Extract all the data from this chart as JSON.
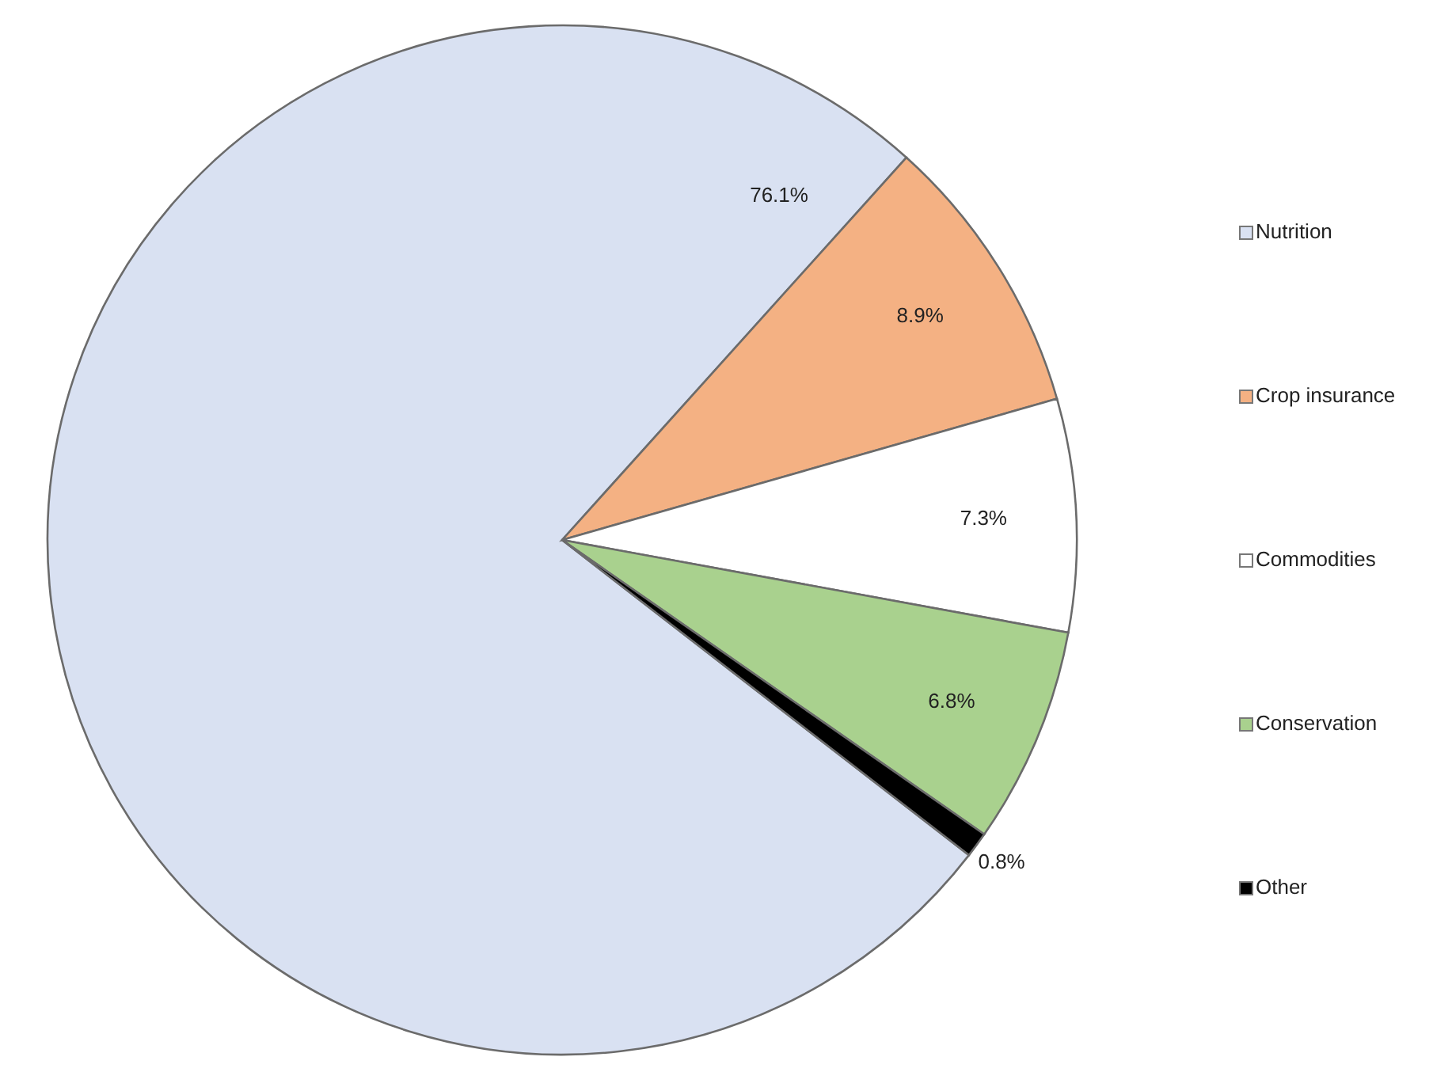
{
  "chart_data": {
    "type": "pie",
    "categories": [
      "Nutrition",
      "Crop insurance",
      "Commodities",
      "Conservation",
      "Other"
    ],
    "values": [
      76.1,
      8.9,
      7.3,
      6.8,
      0.8
    ],
    "value_labels": [
      "76.1%",
      "8.9%",
      "7.3%",
      "6.8%",
      "0.8%"
    ],
    "colors": [
      "#d9e1f2",
      "#f4b183",
      "#ffffff",
      "#a9d18e",
      "#000000"
    ],
    "legend": "right"
  }
}
